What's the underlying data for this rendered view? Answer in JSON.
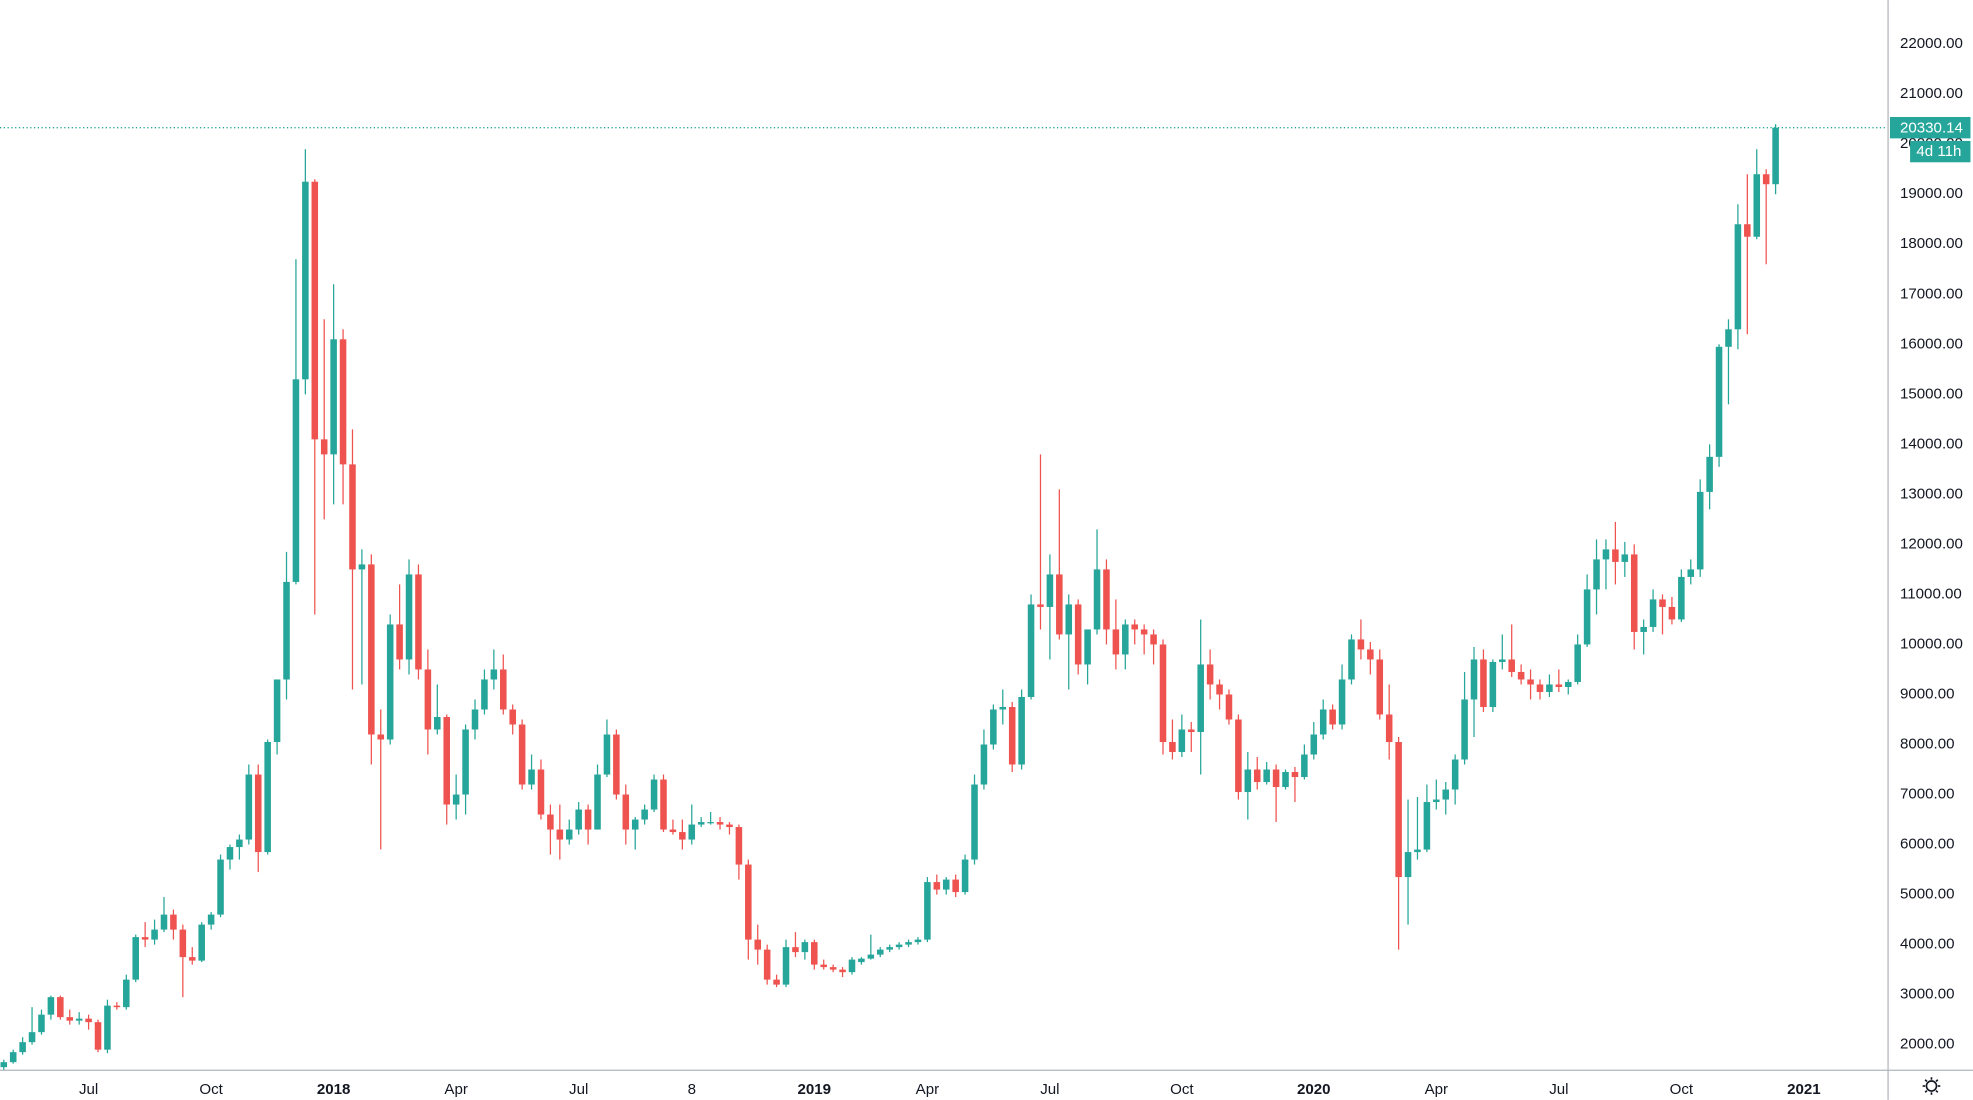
{
  "chart_data": {
    "type": "candlestick",
    "up_color": "#26a69a",
    "down_color": "#ef5350",
    "grid": false,
    "ylim": [
      1500,
      22880
    ],
    "yticks": [
      {
        "value": 2000,
        "label": "2000.00"
      },
      {
        "value": 3000,
        "label": "3000.00"
      },
      {
        "value": 4000,
        "label": "4000.00"
      },
      {
        "value": 5000,
        "label": "5000.00"
      },
      {
        "value": 6000,
        "label": "6000.00"
      },
      {
        "value": 7000,
        "label": "7000.00"
      },
      {
        "value": 8000,
        "label": "8000.00"
      },
      {
        "value": 9000,
        "label": "9000.00"
      },
      {
        "value": 10000,
        "label": "10000.00"
      },
      {
        "value": 11000,
        "label": "11000.00"
      },
      {
        "value": 12000,
        "label": "12000.00"
      },
      {
        "value": 13000,
        "label": "13000.00"
      },
      {
        "value": 14000,
        "label": "14000.00"
      },
      {
        "value": 15000,
        "label": "15000.00"
      },
      {
        "value": 16000,
        "label": "16000.00"
      },
      {
        "value": 17000,
        "label": "17000.00"
      },
      {
        "value": 18000,
        "label": "18000.00"
      },
      {
        "value": 19000,
        "label": "19000.00"
      },
      {
        "value": 20000,
        "label": "20000.00"
      },
      {
        "value": 21000,
        "label": "21000.00"
      },
      {
        "value": 22000,
        "label": "22000.00"
      }
    ],
    "countdown": "4d 11h",
    "categories": [
      null,
      null,
      null,
      null,
      null,
      null,
      null,
      null,
      null,
      "Jul",
      null,
      null,
      null,
      null,
      null,
      null,
      null,
      null,
      null,
      null,
      null,
      null,
      "Oct",
      null,
      null,
      null,
      null,
      null,
      null,
      null,
      null,
      null,
      null,
      null,
      null,
      "2018",
      null,
      null,
      null,
      null,
      null,
      null,
      null,
      null,
      null,
      null,
      null,
      null,
      "Apr",
      null,
      null,
      null,
      null,
      null,
      null,
      null,
      null,
      null,
      null,
      null,
      null,
      "Jul",
      null,
      null,
      null,
      null,
      null,
      null,
      null,
      null,
      null,
      null,
      null,
      "8",
      null,
      null,
      null,
      null,
      null,
      null,
      null,
      null,
      null,
      null,
      null,
      null,
      "2019",
      null,
      null,
      null,
      null,
      null,
      null,
      null,
      null,
      null,
      null,
      null,
      "Apr",
      null,
      null,
      null,
      null,
      null,
      null,
      null,
      null,
      null,
      null,
      null,
      null,
      "Jul",
      null,
      null,
      null,
      null,
      null,
      null,
      null,
      null,
      null,
      null,
      null,
      null,
      null,
      "Oct",
      null,
      null,
      null,
      null,
      null,
      null,
      null,
      null,
      null,
      null,
      null,
      null,
      null,
      "2020",
      null,
      null,
      null,
      null,
      null,
      null,
      null,
      null,
      null,
      null,
      null,
      null,
      "Apr",
      null,
      null,
      null,
      null,
      null,
      null,
      null,
      null,
      null,
      null,
      null,
      null,
      "Jul",
      null,
      null,
      null,
      null,
      null,
      null,
      null,
      null,
      null,
      null,
      null,
      null,
      "Oct",
      null,
      null,
      null,
      null,
      null,
      null,
      null,
      null,
      null,
      null,
      null,
      null,
      "2021"
    ],
    "ohlc": [
      [
        1550,
        1700,
        1480,
        1650
      ],
      [
        1650,
        1900,
        1620,
        1850
      ],
      [
        1850,
        2150,
        1800,
        2050
      ],
      [
        2050,
        2750,
        2000,
        2250
      ],
      [
        2250,
        2700,
        2200,
        2600
      ],
      [
        2600,
        2980,
        2500,
        2950
      ],
      [
        2950,
        2980,
        2500,
        2550
      ],
      [
        2550,
        2700,
        2400,
        2480
      ],
      [
        2480,
        2650,
        2400,
        2520
      ],
      [
        2520,
        2600,
        2300,
        2450
      ],
      [
        2450,
        2500,
        1850,
        1900
      ],
      [
        1900,
        2900,
        1830,
        2780
      ],
      [
        2780,
        2850,
        2700,
        2750
      ],
      [
        2750,
        3400,
        2700,
        3300
      ],
      [
        3300,
        4200,
        3250,
        4150
      ],
      [
        4150,
        4450,
        3950,
        4100
      ],
      [
        4100,
        4500,
        4000,
        4300
      ],
      [
        4300,
        4950,
        4250,
        4600
      ],
      [
        4600,
        4700,
        4100,
        4300
      ],
      [
        4300,
        4400,
        2950,
        3750
      ],
      [
        3750,
        3950,
        3600,
        3680
      ],
      [
        3680,
        4450,
        3650,
        4400
      ],
      [
        4400,
        4650,
        4300,
        4600
      ],
      [
        4600,
        5800,
        4550,
        5700
      ],
      [
        5700,
        6000,
        5500,
        5950
      ],
      [
        5950,
        6200,
        5700,
        6100
      ],
      [
        6100,
        7600,
        6000,
        7400
      ],
      [
        7400,
        7600,
        5450,
        5850
      ],
      [
        5850,
        8100,
        5800,
        8050
      ],
      [
        8050,
        9300,
        7800,
        9300
      ],
      [
        9300,
        11850,
        8900,
        11250
      ],
      [
        11250,
        17700,
        11200,
        15300
      ],
      [
        15300,
        19900,
        15000,
        19250
      ],
      [
        19250,
        19300,
        10600,
        14100
      ],
      [
        14100,
        16500,
        12500,
        13800
      ],
      [
        13800,
        17200,
        12800,
        16100
      ],
      [
        16100,
        16300,
        12800,
        13600
      ],
      [
        13600,
        14300,
        9100,
        11500
      ],
      [
        11500,
        11900,
        9200,
        11600
      ],
      [
        11600,
        11800,
        7600,
        8200
      ],
      [
        8200,
        8700,
        5900,
        8100
      ],
      [
        8100,
        10600,
        8000,
        10400
      ],
      [
        10400,
        11200,
        9500,
        9700
      ],
      [
        9700,
        11700,
        9400,
        11400
      ],
      [
        11400,
        11600,
        9300,
        9500
      ],
      [
        9500,
        9900,
        7800,
        8300
      ],
      [
        8300,
        9200,
        8200,
        8550
      ],
      [
        8550,
        8600,
        6400,
        6800
      ],
      [
        6800,
        7400,
        6500,
        7000
      ],
      [
        7000,
        8400,
        6600,
        8300
      ],
      [
        8300,
        8900,
        8100,
        8700
      ],
      [
        8700,
        9500,
        8600,
        9300
      ],
      [
        9300,
        9900,
        9100,
        9500
      ],
      [
        9500,
        9800,
        8600,
        8700
      ],
      [
        8700,
        8800,
        8200,
        8400
      ],
      [
        8400,
        8500,
        7100,
        7200
      ],
      [
        7200,
        7800,
        7100,
        7500
      ],
      [
        7500,
        7700,
        6500,
        6600
      ],
      [
        6600,
        6800,
        5800,
        6300
      ],
      [
        6300,
        6800,
        5700,
        6100
      ],
      [
        6100,
        6500,
        6000,
        6300
      ],
      [
        6300,
        6850,
        6200,
        6700
      ],
      [
        6700,
        6800,
        6000,
        6300
      ],
      [
        6300,
        7600,
        6300,
        7400
      ],
      [
        7400,
        8500,
        7350,
        8200
      ],
      [
        8200,
        8300,
        6900,
        7000
      ],
      [
        7000,
        7200,
        6000,
        6300
      ],
      [
        6300,
        6550,
        5900,
        6500
      ],
      [
        6500,
        6800,
        6400,
        6700
      ],
      [
        6700,
        7400,
        6650,
        7300
      ],
      [
        7300,
        7400,
        6250,
        6300
      ],
      [
        6300,
        6500,
        6200,
        6250
      ],
      [
        6250,
        6500,
        5900,
        6100
      ],
      [
        6100,
        6800,
        6000,
        6400
      ],
      [
        6400,
        6550,
        6350,
        6450
      ],
      [
        6450,
        6650,
        6400,
        6450
      ],
      [
        6450,
        6550,
        6300,
        6400
      ],
      [
        6400,
        6450,
        6200,
        6350
      ],
      [
        6350,
        6400,
        5300,
        5600
      ],
      [
        5600,
        5700,
        3700,
        4100
      ],
      [
        4100,
        4400,
        3600,
        3900
      ],
      [
        3900,
        4000,
        3200,
        3300
      ],
      [
        3300,
        3400,
        3150,
        3200
      ],
      [
        3200,
        4100,
        3150,
        3950
      ],
      [
        3950,
        4250,
        3750,
        3850
      ],
      [
        3850,
        4100,
        3700,
        4050
      ],
      [
        4050,
        4100,
        3500,
        3600
      ],
      [
        3600,
        3700,
        3500,
        3550
      ],
      [
        3550,
        3600,
        3450,
        3500
      ],
      [
        3500,
        3550,
        3350,
        3450
      ],
      [
        3450,
        3750,
        3400,
        3700
      ],
      [
        3650,
        3750,
        3600,
        3720
      ],
      [
        3720,
        4200,
        3700,
        3800
      ],
      [
        3800,
        3950,
        3750,
        3900
      ],
      [
        3900,
        4000,
        3850,
        3950
      ],
      [
        3950,
        4050,
        3900,
        4000
      ],
      [
        4000,
        4100,
        3950,
        4050
      ],
      [
        4050,
        4150,
        4000,
        4100
      ],
      [
        4100,
        5350,
        4050,
        5250
      ],
      [
        5250,
        5400,
        5000,
        5100
      ],
      [
        5100,
        5350,
        5000,
        5300
      ],
      [
        5300,
        5400,
        4950,
        5050
      ],
      [
        5050,
        5800,
        5000,
        5700
      ],
      [
        5700,
        7400,
        5600,
        7200
      ],
      [
        7200,
        8300,
        7100,
        8000
      ],
      [
        8000,
        8800,
        7900,
        8700
      ],
      [
        8700,
        9100,
        8400,
        8750
      ],
      [
        8750,
        8850,
        7450,
        7600
      ],
      [
        7600,
        9100,
        7500,
        8950
      ],
      [
        8950,
        11000,
        8900,
        10800
      ],
      [
        10800,
        13800,
        10300,
        10750
      ],
      [
        10750,
        11800,
        9700,
        11400
      ],
      [
        11400,
        13100,
        10100,
        10200
      ],
      [
        10200,
        11000,
        9100,
        10800
      ],
      [
        10800,
        10900,
        9400,
        9600
      ],
      [
        9600,
        10300,
        9200,
        10300
      ],
      [
        10300,
        12300,
        10200,
        11500
      ],
      [
        11500,
        11700,
        10000,
        10300
      ],
      [
        10300,
        10900,
        9500,
        9800
      ],
      [
        9800,
        10500,
        9500,
        10400
      ],
      [
        10400,
        10500,
        10000,
        10300
      ],
      [
        10300,
        10400,
        9800,
        10200
      ],
      [
        10200,
        10300,
        9600,
        10000
      ],
      [
        10000,
        10100,
        7800,
        8050
      ],
      [
        8050,
        8500,
        7700,
        7850
      ],
      [
        7850,
        8600,
        7750,
        8300
      ],
      [
        8300,
        8450,
        7850,
        8250
      ],
      [
        8250,
        10500,
        7400,
        9600
      ],
      [
        9600,
        9900,
        8900,
        9200
      ],
      [
        9200,
        9300,
        8700,
        9000
      ],
      [
        9000,
        9100,
        8400,
        8500
      ],
      [
        8500,
        8600,
        6900,
        7050
      ],
      [
        7050,
        7850,
        6500,
        7500
      ],
      [
        7500,
        7750,
        7100,
        7250
      ],
      [
        7250,
        7650,
        7200,
        7500
      ],
      [
        7500,
        7600,
        6450,
        7150
      ],
      [
        7150,
        7500,
        7100,
        7450
      ],
      [
        7450,
        7550,
        6850,
        7350
      ],
      [
        7350,
        8000,
        7300,
        7800
      ],
      [
        7800,
        8450,
        7700,
        8200
      ],
      [
        8200,
        8900,
        8100,
        8700
      ],
      [
        8700,
        8800,
        8300,
        8400
      ],
      [
        8400,
        9600,
        8300,
        9300
      ],
      [
        9300,
        10200,
        9200,
        10100
      ],
      [
        10100,
        10500,
        9700,
        9900
      ],
      [
        9900,
        10050,
        9400,
        9700
      ],
      [
        9700,
        9900,
        8500,
        8600
      ],
      [
        8600,
        9200,
        7700,
        8050
      ],
      [
        8050,
        8150,
        3900,
        5350
      ],
      [
        5350,
        6900,
        4400,
        5850
      ],
      [
        5850,
        6950,
        5700,
        5900
      ],
      [
        5900,
        7200,
        5850,
        6850
      ],
      [
        6850,
        7300,
        6700,
        6900
      ],
      [
        6900,
        7250,
        6600,
        7100
      ],
      [
        7100,
        7800,
        6800,
        7700
      ],
      [
        7700,
        9450,
        7600,
        8900
      ],
      [
        8900,
        9950,
        8150,
        9700
      ],
      [
        9700,
        9900,
        8650,
        8750
      ],
      [
        8750,
        9700,
        8650,
        9650
      ],
      [
        9650,
        10200,
        9500,
        9700
      ],
      [
        9700,
        10400,
        9350,
        9450
      ],
      [
        9450,
        9600,
        9200,
        9300
      ],
      [
        9300,
        9500,
        8900,
        9200
      ],
      [
        9200,
        9300,
        8900,
        9050
      ],
      [
        9050,
        9400,
        8950,
        9200
      ],
      [
        9200,
        9500,
        9050,
        9150
      ],
      [
        9150,
        9300,
        9000,
        9250
      ],
      [
        9250,
        10200,
        9200,
        10000
      ],
      [
        10000,
        11400,
        9950,
        11100
      ],
      [
        11100,
        12100,
        10600,
        11700
      ],
      [
        11700,
        12100,
        11100,
        11900
      ],
      [
        11900,
        12450,
        11200,
        11650
      ],
      [
        11650,
        12050,
        11350,
        11800
      ],
      [
        11800,
        12000,
        9900,
        10250
      ],
      [
        10250,
        10500,
        9800,
        10350
      ],
      [
        10350,
        11100,
        10250,
        10900
      ],
      [
        10900,
        11000,
        10200,
        10750
      ],
      [
        10750,
        10950,
        10400,
        10500
      ],
      [
        10500,
        11500,
        10450,
        11350
      ],
      [
        11350,
        11700,
        11200,
        11500
      ],
      [
        11500,
        13300,
        11350,
        13050
      ],
      [
        13050,
        14000,
        12700,
        13750
      ],
      [
        13750,
        16000,
        13550,
        15950
      ],
      [
        15950,
        16500,
        14800,
        16300
      ],
      [
        16300,
        18800,
        15900,
        18400
      ],
      [
        18400,
        19400,
        16200,
        18150
      ],
      [
        18150,
        19900,
        18100,
        19400
      ],
      [
        19400,
        19500,
        17600,
        19200
      ],
      [
        19200,
        20400,
        19000,
        20330.14
      ],
      null,
      null,
      null
    ]
  }
}
